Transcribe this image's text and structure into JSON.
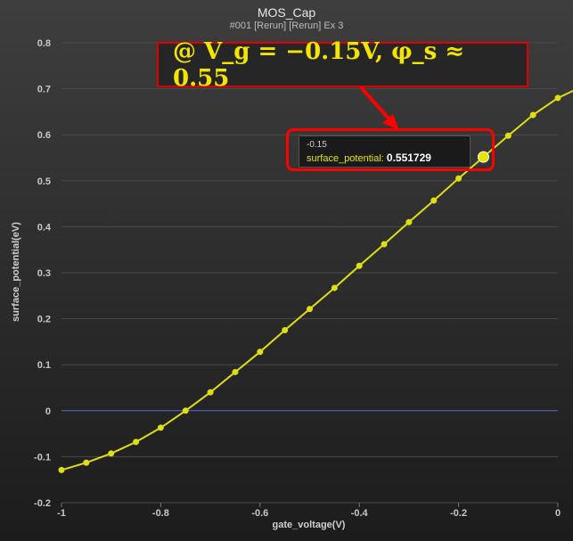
{
  "header": {
    "title": "MOS_Cap",
    "subtitle": "#001 [Rerun] [Rerun] Ex 3"
  },
  "annotation": {
    "text": "@ V_g = −0.15V, φ_s ≈ 0.55",
    "border_color": "#e00000",
    "text_color": "#f4e500"
  },
  "tooltip": {
    "x_value": "-0.15",
    "series_name": "surface_potential",
    "separator": ":",
    "y_value": "0.551729",
    "highlight_color": "#ff0000"
  },
  "chart_data": {
    "type": "line",
    "title": "MOS_Cap",
    "subtitle": "#001 [Rerun] [Rerun] Ex 3",
    "xlabel": "gate_voltage(V)",
    "ylabel": "surface_potential(eV)",
    "xlim": [
      -1,
      0
    ],
    "ylim": [
      -0.2,
      0.8
    ],
    "x_ticks": [
      "-1",
      "-0.8",
      "-0.6",
      "-0.4",
      "-0.2",
      "0"
    ],
    "y_ticks": [
      "-0.2",
      "-0.1",
      "0",
      "0.1",
      "0.2",
      "0.3",
      "0.4",
      "0.5",
      "0.6",
      "0.7",
      "0.8"
    ],
    "grid": true,
    "zero_line_color": "#4a6fd6",
    "series": [
      {
        "name": "surface_potential",
        "color": "#dede10",
        "x": [
          -1.0,
          -0.95,
          -0.9,
          -0.85,
          -0.8,
          -0.75,
          -0.7,
          -0.65,
          -0.6,
          -0.55,
          -0.5,
          -0.45,
          -0.4,
          -0.35,
          -0.3,
          -0.25,
          -0.2,
          -0.15,
          -0.1,
          -0.05,
          0.0
        ],
        "y": [
          -0.129,
          -0.113,
          -0.093,
          -0.068,
          -0.037,
          0.0,
          0.04,
          0.084,
          0.128,
          0.175,
          0.221,
          0.267,
          0.315,
          0.362,
          0.41,
          0.457,
          0.505,
          0.551729,
          0.598,
          0.643,
          0.68
        ]
      }
    ],
    "highlight_point": {
      "x": -0.15,
      "y": 0.551729
    }
  }
}
